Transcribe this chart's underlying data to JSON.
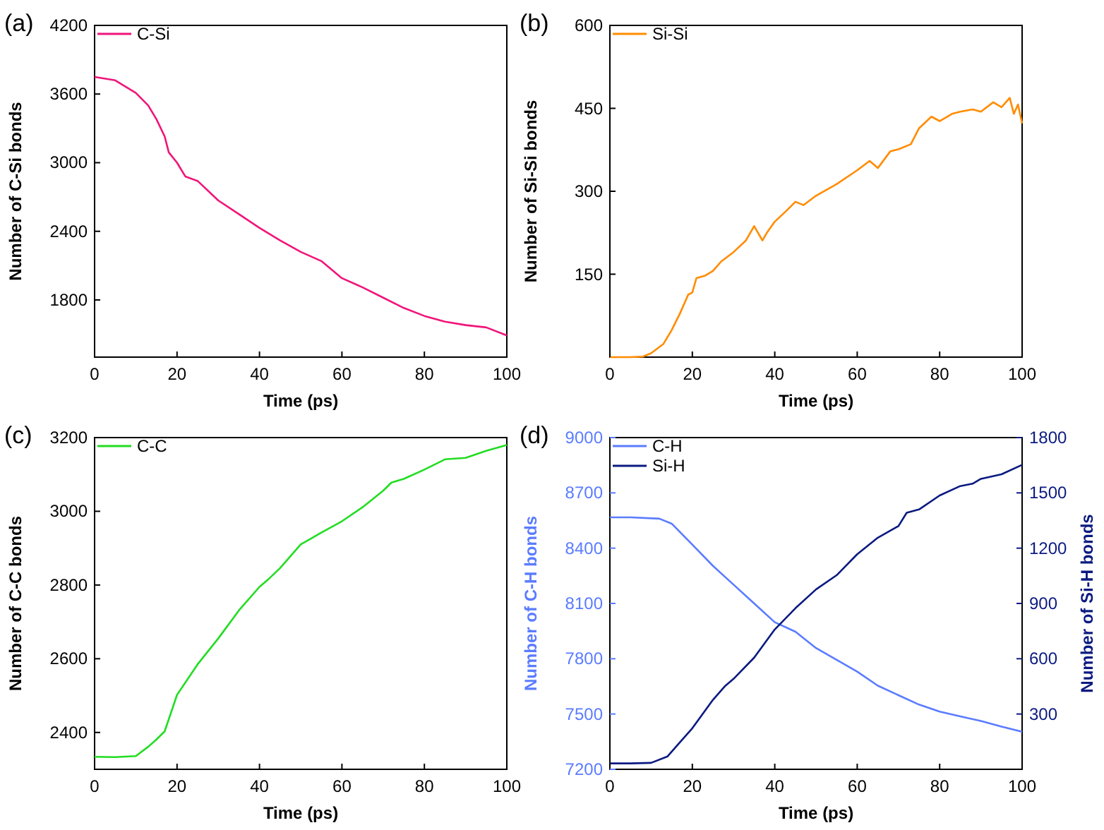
{
  "chart_data": [
    {
      "type": "line",
      "annotations": [
        "(a)"
      ],
      "xlabel": "Time (ps)",
      "ylabel": "Number of C-Si bonds",
      "legend": "top left",
      "xlim": [
        0,
        100
      ],
      "xticks": [
        0,
        20,
        40,
        60,
        80,
        100
      ],
      "ylim": [
        1300,
        4200
      ],
      "yticks": [
        1800,
        2400,
        3000,
        3600,
        4200
      ],
      "series": [
        {
          "name": "C-Si",
          "color": "#f0157a",
          "x": [
            0,
            5,
            10,
            13,
            15,
            17,
            18,
            20,
            22,
            25,
            30,
            35,
            40,
            45,
            50,
            55,
            60,
            65,
            70,
            75,
            80,
            85,
            90,
            95,
            100
          ],
          "values": [
            3750,
            3720,
            3610,
            3500,
            3380,
            3230,
            3090,
            3000,
            2880,
            2840,
            2670,
            2550,
            2430,
            2320,
            2220,
            2140,
            1990,
            1910,
            1820,
            1730,
            1660,
            1610,
            1580,
            1560,
            1490
          ]
        }
      ]
    },
    {
      "type": "line",
      "annotations": [
        "(b)"
      ],
      "xlabel": "Time (ps)",
      "ylabel": "Number of Si-Si bonds",
      "legend": "top left",
      "xlim": [
        0,
        100
      ],
      "xticks": [
        0,
        20,
        40,
        60,
        80,
        100
      ],
      "ylim": [
        0,
        600
      ],
      "yticks": [
        150,
        300,
        450,
        600
      ],
      "series": [
        {
          "name": "Si-Si",
          "color": "#ff8c00",
          "x": [
            0,
            5,
            8,
            10,
            13,
            15,
            17,
            19,
            20,
            21,
            23,
            25,
            27,
            30,
            33,
            35,
            37,
            38,
            40,
            43,
            45,
            47,
            50,
            55,
            60,
            63,
            65,
            68,
            70,
            73,
            75,
            78,
            80,
            83,
            85,
            88,
            90,
            93,
            95,
            97,
            98,
            99,
            100
          ],
          "values": [
            0,
            0,
            1,
            7,
            24,
            49,
            79,
            113,
            117,
            143,
            147,
            156,
            173,
            190,
            211,
            237,
            211,
            224,
            245,
            266,
            281,
            275,
            292,
            313,
            338,
            355,
            342,
            372,
            376,
            385,
            414,
            435,
            427,
            440,
            444,
            448,
            444,
            461,
            452,
            469,
            440,
            457,
            423
          ]
        }
      ]
    },
    {
      "type": "line",
      "annotations": [
        "(c)"
      ],
      "xlabel": "Time (ps)",
      "ylabel": "Number of C-C bonds",
      "legend": "top left",
      "xlim": [
        0,
        100
      ],
      "xticks": [
        0,
        20,
        40,
        60,
        80,
        100
      ],
      "ylim": [
        2300,
        3200
      ],
      "yticks": [
        2400,
        2600,
        2800,
        3000,
        3200
      ],
      "series": [
        {
          "name": "C-C",
          "color": "#22dd22",
          "x": [
            0,
            5,
            10,
            13,
            15,
            17,
            20,
            25,
            30,
            35,
            40,
            42,
            45,
            50,
            55,
            60,
            65,
            70,
            72,
            75,
            80,
            85,
            90,
            95,
            100
          ],
          "values": [
            2334,
            2333,
            2336,
            2361,
            2381,
            2403,
            2502,
            2585,
            2655,
            2731,
            2795,
            2814,
            2846,
            2910,
            2942,
            2973,
            3011,
            3056,
            3078,
            3088,
            3113,
            3141,
            3145,
            3164,
            3180
          ]
        }
      ]
    },
    {
      "type": "line",
      "annotations": [
        "(d)"
      ],
      "xlabel": "Time (ps)",
      "ylabel": "Number of C-H bonds",
      "y2label": "Number of Si-H bonds",
      "legend": "top left",
      "xlim": [
        0,
        100
      ],
      "xticks": [
        0,
        20,
        40,
        60,
        80,
        100
      ],
      "ylim": [
        7200,
        9000
      ],
      "yticks": [
        7200,
        7500,
        7800,
        8100,
        8400,
        8700,
        9000
      ],
      "y2lim": [
        0,
        1800
      ],
      "y2ticks": [
        300,
        600,
        900,
        1200,
        1500,
        1800
      ],
      "series": [
        {
          "name": "C-H",
          "color": "#5b7cff",
          "x": [
            0,
            5,
            12,
            15,
            20,
            25,
            30,
            35,
            40,
            45,
            50,
            55,
            60,
            65,
            70,
            75,
            80,
            85,
            90,
            95,
            100
          ],
          "values": [
            8567,
            8567,
            8560,
            8533,
            8419,
            8304,
            8202,
            8100,
            7998,
            7947,
            7858,
            7794,
            7730,
            7654,
            7602,
            7551,
            7513,
            7487,
            7462,
            7432,
            7404
          ]
        },
        {
          "name": "Si-H",
          "color": "#0b1a80",
          "axis": "y2",
          "x": [
            0,
            5,
            10,
            14,
            17,
            20,
            25,
            28,
            30,
            35,
            40,
            45,
            50,
            55,
            60,
            65,
            70,
            72,
            75,
            80,
            85,
            88,
            90,
            95,
            100
          ],
          "values": [
            32,
            32,
            35,
            70,
            147,
            223,
            377,
            453,
            491,
            606,
            759,
            874,
            976,
            1053,
            1167,
            1257,
            1320,
            1392,
            1410,
            1486,
            1537,
            1550,
            1576,
            1601,
            1652
          ]
        }
      ]
    }
  ]
}
